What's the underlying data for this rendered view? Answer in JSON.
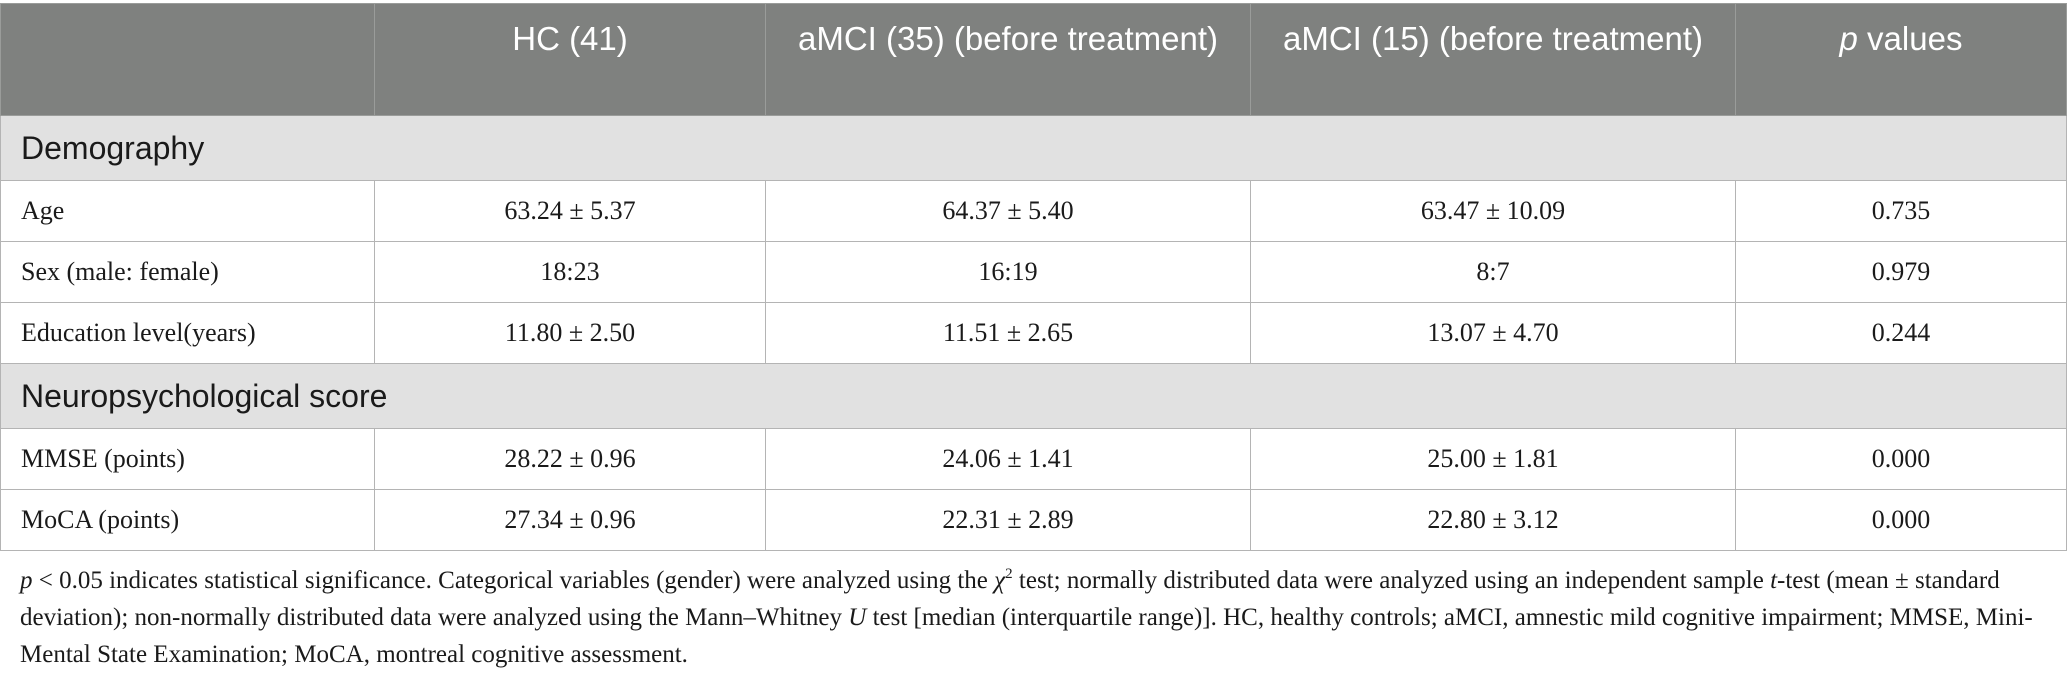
{
  "table": {
    "headers": {
      "col0": "",
      "col1": "HC (41)",
      "col2": "aMCI (35) (before treatment)",
      "col3": "aMCI (15) (before treatment)",
      "col4_italic": "p",
      "col4_rest": " values"
    },
    "sections": [
      {
        "title": "Demography",
        "rows": [
          {
            "label": "Age",
            "hc": "63.24 ± 5.37",
            "amci35": "64.37 ± 5.40",
            "amci15": "63.47 ± 10.09",
            "p": "0.735"
          },
          {
            "label": "Sex (male: female)",
            "hc": "18:23",
            "amci35": "16:19",
            "amci15": "8:7",
            "p": "0.979"
          },
          {
            "label": "Education level(years)",
            "hc": "11.80 ± 2.50",
            "amci35": "11.51 ± 2.65",
            "amci15": "13.07 ± 4.70",
            "p": "0.244"
          }
        ]
      },
      {
        "title": "Neuropsychological score",
        "rows": [
          {
            "label": "MMSE (points)",
            "hc": "28.22 ± 0.96",
            "amci35": "24.06 ± 1.41",
            "amci15": "25.00 ± 1.81",
            "p": "0.000"
          },
          {
            "label": "MoCA (points)",
            "hc": "27.34 ± 0.96",
            "amci35": "22.31 ± 2.89",
            "amci15": "22.80 ± 3.12",
            "p": "0.000"
          }
        ]
      }
    ]
  },
  "footnote": {
    "p_symbol": "p",
    "part1": " < 0.05 indicates statistical significance. Categorical variables (gender) were analyzed using the ",
    "chi": "χ",
    "chi_sup": "2",
    "part2": " test; normally distributed data were analyzed using an independent sample ",
    "t": "t",
    "part3": "-test (mean ± standard deviation); non-normally distributed data were analyzed using the Mann–Whitney ",
    "u": "U",
    "part4": " test [median (interquartile range)]. HC, healthy controls; aMCI, amnestic mild cognitive impairment; MMSE, Mini-Mental State Examination; MoCA, montreal cognitive assessment."
  }
}
